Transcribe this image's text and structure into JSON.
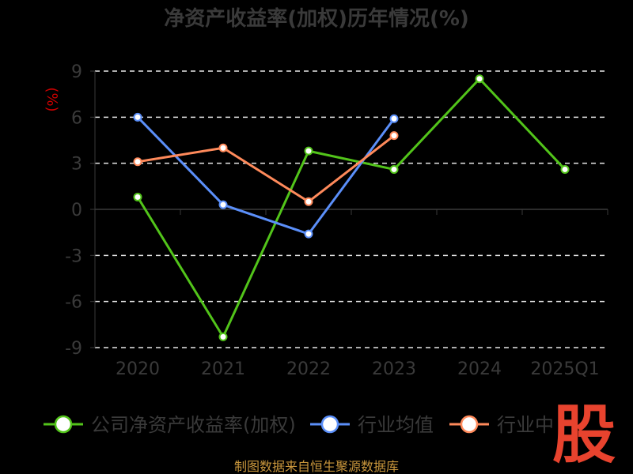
{
  "chart_data": {
    "type": "line",
    "title": "净资产收益率(加权)历年情况(%)",
    "unit_label": "(%)",
    "categories": [
      "2020",
      "2021",
      "2022",
      "2023",
      "2024",
      "2025Q1"
    ],
    "ylim": [
      -9,
      9
    ],
    "yticks": [
      9,
      6,
      3,
      0,
      -3,
      -6,
      -9
    ],
    "grid": true,
    "legend_position": "bottom",
    "series": [
      {
        "name": "公司净资产收益率(加权)",
        "color": "#52c41a",
        "values": [
          0.8,
          -8.3,
          3.8,
          2.6,
          8.5,
          2.6
        ]
      },
      {
        "name": "行业均值",
        "color": "#5b8ff9",
        "values": [
          6.0,
          0.3,
          -1.6,
          5.9,
          null,
          null
        ]
      },
      {
        "name": "行业中",
        "color": "#ff8a5b",
        "values": [
          3.1,
          4.0,
          0.5,
          4.8,
          null,
          null
        ]
      }
    ]
  },
  "source": "制图数据来自恒生聚源数据库",
  "logo": "股"
}
